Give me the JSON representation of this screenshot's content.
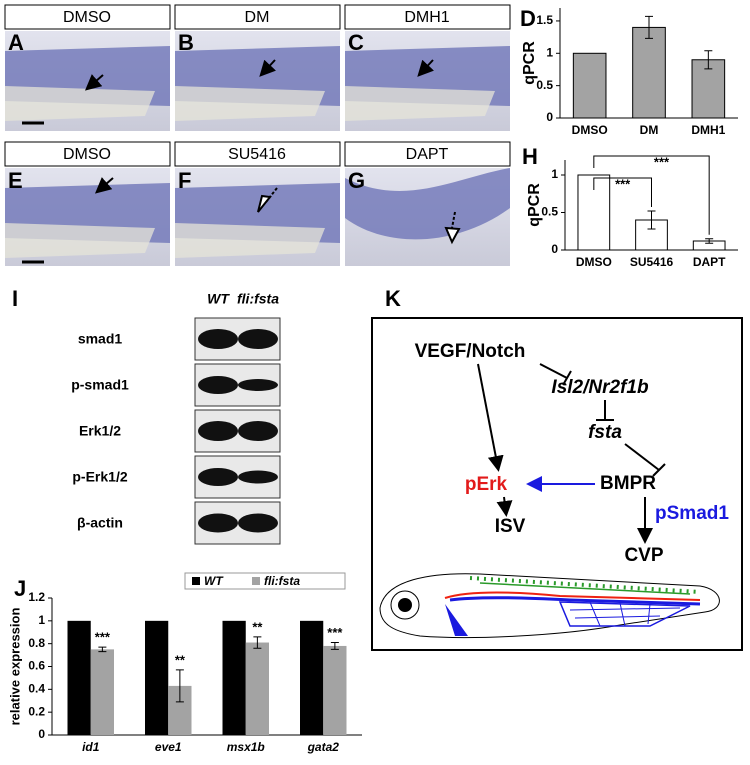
{
  "panel_letters": [
    "A",
    "B",
    "C",
    "D",
    "E",
    "F",
    "G",
    "H",
    "I",
    "J",
    "K"
  ],
  "images": [
    {
      "label": "DMSO"
    },
    {
      "label": "DM"
    },
    {
      "label": "DMH1"
    },
    {
      "label": "DMSO"
    },
    {
      "label": "SU5416"
    },
    {
      "label": "DAPT"
    }
  ],
  "blot": {
    "columns": [
      "WT",
      "fli:fsta"
    ],
    "rows": [
      "smad1",
      "p-smad1",
      "Erk1/2",
      "p-Erk1/2",
      "β-actin"
    ]
  },
  "diagram": {
    "nodes": [
      "VEGF/Notch",
      "Isl2/Nr2f1b",
      "fsta",
      "BMPR",
      "pErk",
      "ISV",
      "pSmad1",
      "CVP"
    ]
  },
  "chart_data": [
    {
      "type": "bar",
      "ylabel": "qPCR",
      "categories": [
        "DMSO",
        "DM",
        "DMH1"
      ],
      "values": [
        1,
        1.4,
        0.9
      ],
      "errors": [
        0,
        0.17,
        0.14
      ],
      "color": "#a3a3a3",
      "ylim": [
        0,
        1.7
      ],
      "yticks": [
        0,
        0.5,
        1,
        1.5
      ]
    },
    {
      "type": "bar",
      "ylabel": "qPCR",
      "categories": [
        "DMSO",
        "SU5416",
        "DAPT"
      ],
      "values": [
        1,
        0.4,
        0.12
      ],
      "errors": [
        0,
        0.12,
        0.03
      ],
      "color": "#ffffff",
      "ylim": [
        0,
        1.2
      ],
      "yticks": [
        0,
        0.5,
        1
      ],
      "annotations": [
        "***",
        "***"
      ]
    },
    {
      "type": "bar",
      "ylabel": "relative expression",
      "categories": [
        "id1",
        "eve1",
        "msx1b",
        "gata2"
      ],
      "series": [
        {
          "name": "WT",
          "color": "#000000",
          "values": [
            1,
            1,
            1,
            1
          ]
        },
        {
          "name": "fli:fsta",
          "color": "#a3a3a3",
          "values": [
            0.75,
            0.43,
            0.81,
            0.78
          ],
          "errors": [
            0.02,
            0.14,
            0.05,
            0.03
          ]
        }
      ],
      "annotations": [
        "***",
        "**",
        "**",
        "***"
      ],
      "ylim": [
        0,
        1.2
      ],
      "yticks": [
        0,
        0.2,
        0.4,
        0.6,
        0.8,
        1,
        1.2
      ]
    }
  ]
}
